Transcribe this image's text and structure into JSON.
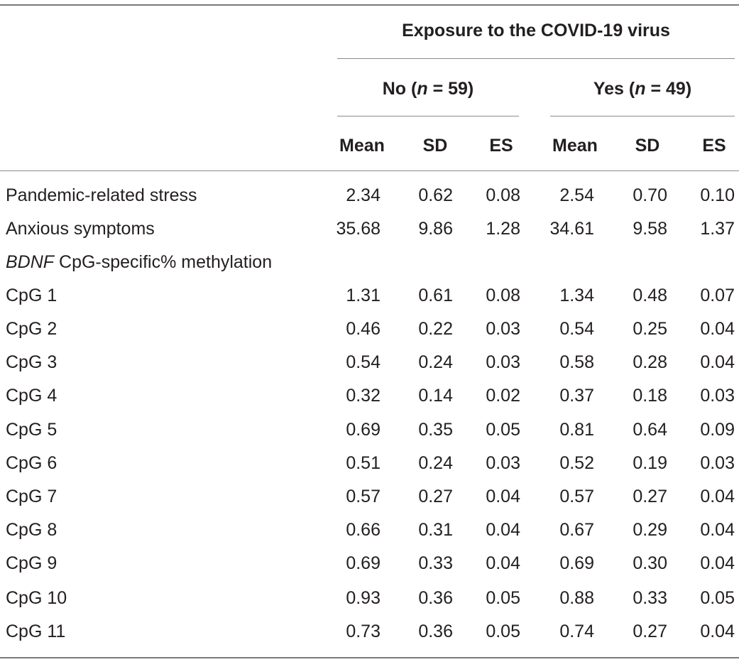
{
  "table": {
    "header": {
      "group_title": "Exposure to the COVID-19 virus",
      "no_group": {
        "label": "No",
        "n_var": "n",
        "n_rest": " = 59)"
      },
      "yes_group": {
        "label": "Yes",
        "n_var": "n",
        "n_rest": " = 49)"
      },
      "columns": [
        "Mean",
        "SD",
        "ES",
        "Mean",
        "SD",
        "ES"
      ]
    },
    "rows": [
      {
        "label": "Pandemic-related stress",
        "values": [
          "2.34",
          "0.62",
          "0.08",
          "2.54",
          "0.70",
          "0.10"
        ]
      },
      {
        "label": "Anxious symptoms",
        "values": [
          "35.68",
          "9.86",
          "1.28",
          "34.61",
          "9.58",
          "1.37"
        ]
      },
      {
        "label_italic": "BDNF",
        "label_rest": " CpG-specific% methylation",
        "values": []
      },
      {
        "label": "CpG 1",
        "values": [
          "1.31",
          "0.61",
          "0.08",
          "1.34",
          "0.48",
          "0.07"
        ]
      },
      {
        "label": "CpG 2",
        "values": [
          "0.46",
          "0.22",
          "0.03",
          "0.54",
          "0.25",
          "0.04"
        ]
      },
      {
        "label": "CpG 3",
        "values": [
          "0.54",
          "0.24",
          "0.03",
          "0.58",
          "0.28",
          "0.04"
        ]
      },
      {
        "label": "CpG 4",
        "values": [
          "0.32",
          "0.14",
          "0.02",
          "0.37",
          "0.18",
          "0.03"
        ]
      },
      {
        "label": "CpG 5",
        "values": [
          "0.69",
          "0.35",
          "0.05",
          "0.81",
          "0.64",
          "0.09"
        ]
      },
      {
        "label": "CpG 6",
        "values": [
          "0.51",
          "0.24",
          "0.03",
          "0.52",
          "0.19",
          "0.03"
        ]
      },
      {
        "label": "CpG 7",
        "values": [
          "0.57",
          "0.27",
          "0.04",
          "0.57",
          "0.27",
          "0.04"
        ]
      },
      {
        "label": "CpG 8",
        "values": [
          "0.66",
          "0.31",
          "0.04",
          "0.67",
          "0.29",
          "0.04"
        ]
      },
      {
        "label": "CpG 9",
        "values": [
          "0.69",
          "0.33",
          "0.04",
          "0.69",
          "0.30",
          "0.04"
        ]
      },
      {
        "label": "CpG 10",
        "values": [
          "0.93",
          "0.36",
          "0.05",
          "0.88",
          "0.33",
          "0.05"
        ]
      },
      {
        "label": "CpG 11",
        "values": [
          "0.73",
          "0.36",
          "0.05",
          "0.74",
          "0.27",
          "0.04"
        ]
      }
    ]
  }
}
